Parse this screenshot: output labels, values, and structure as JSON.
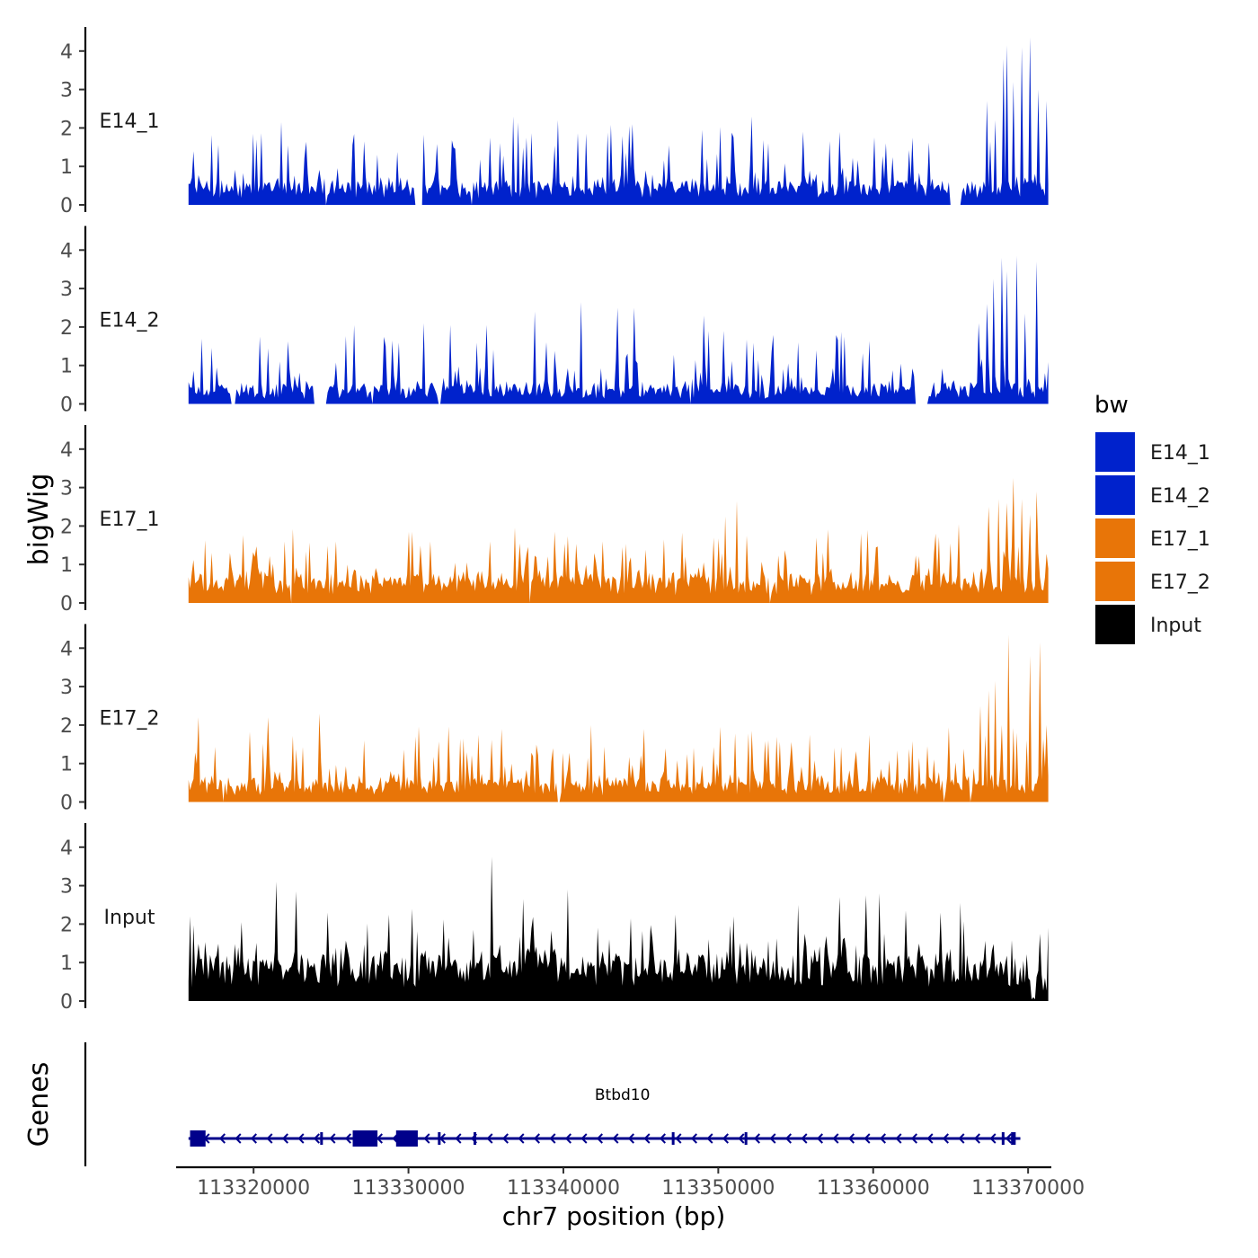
{
  "chart_data": {
    "type": "area",
    "ylabel": "bigWig",
    "genes_label": "Genes",
    "xlabel": "chr7 position (bp)",
    "xlim": [
      113315000,
      113371500
    ],
    "data_range": [
      113315800,
      113371300
    ],
    "x_ticks": [
      113320000,
      113330000,
      113340000,
      113350000,
      113360000,
      113370000
    ],
    "x_tick_labels": [
      "113320000",
      "113330000",
      "113340000",
      "113350000",
      "113360000",
      "113370000"
    ],
    "ylim": [
      0,
      4.4
    ],
    "y_ticks": [
      0,
      1,
      2,
      3,
      4
    ],
    "y_tick_labels": [
      "0",
      "1",
      "2",
      "3",
      "4"
    ],
    "legend": {
      "title": "bw",
      "position": "right",
      "entries": [
        {
          "label": "E14_1",
          "color": "#0022CC"
        },
        {
          "label": "E14_2",
          "color": "#0022CC"
        },
        {
          "label": "E17_1",
          "color": "#E87508"
        },
        {
          "label": "E17_2",
          "color": "#E87508"
        },
        {
          "label": "Input",
          "color": "#000000"
        }
      ]
    },
    "series": [
      {
        "name": "E14_1",
        "color": "#0022CC",
        "baseline": 0.45,
        "noise": 0.35,
        "peaks": 0.18,
        "peak_max": 1.6,
        "gaps": [
          [
            113317300,
            113317350
          ],
          [
            113324600,
            113324700
          ],
          [
            113330400,
            113330900
          ],
          [
            113334000,
            113334150
          ],
          [
            113351200,
            113351300
          ],
          [
            113364900,
            113365700
          ]
        ],
        "highlights": [
          [
            113320200,
            1.7
          ],
          [
            113327100,
            1.65
          ],
          [
            113335300,
            1.75
          ],
          [
            113336800,
            2.3
          ],
          [
            113339700,
            2.2
          ],
          [
            113341500,
            1.85
          ],
          [
            113344500,
            2.1
          ],
          [
            113346800,
            1.55
          ],
          [
            113348900,
            1.95
          ],
          [
            113352200,
            2.3
          ],
          [
            113357800,
            1.9
          ],
          [
            113360800,
            1.6
          ],
          [
            113362500,
            1.75
          ],
          [
            113367300,
            2.7
          ],
          [
            113367900,
            2.2
          ],
          [
            113368400,
            3.8
          ],
          [
            113368600,
            4.15
          ],
          [
            113369100,
            3.2
          ],
          [
            113369600,
            4.1
          ],
          [
            113370100,
            4.35
          ],
          [
            113370700,
            3.0
          ],
          [
            113371200,
            2.7
          ]
        ]
      },
      {
        "name": "E14_2",
        "color": "#0022CC",
        "baseline": 0.35,
        "noise": 0.35,
        "peaks": 0.18,
        "peak_max": 1.5,
        "gaps": [
          [
            113318500,
            113318800
          ],
          [
            113323900,
            113324700
          ],
          [
            113327600,
            113327700
          ],
          [
            113331900,
            113332100
          ],
          [
            113348200,
            113348300
          ],
          [
            113362700,
            113363600
          ]
        ],
        "highlights": [
          [
            113320400,
            1.75
          ],
          [
            113326500,
            2.05
          ],
          [
            113328900,
            1.65
          ],
          [
            113331000,
            2.1
          ],
          [
            113332700,
            2.05
          ],
          [
            113335100,
            2.05
          ],
          [
            113338200,
            2.4
          ],
          [
            113341100,
            2.65
          ],
          [
            113343500,
            2.5
          ],
          [
            113344600,
            2.5
          ],
          [
            113349100,
            2.3
          ],
          [
            113350300,
            1.9
          ],
          [
            113355200,
            1.6
          ],
          [
            113358200,
            1.75
          ],
          [
            113366800,
            2.1
          ],
          [
            113367300,
            2.6
          ],
          [
            113367800,
            3.25
          ],
          [
            113368300,
            3.8
          ],
          [
            113368600,
            3.45
          ],
          [
            113369300,
            3.85
          ],
          [
            113369800,
            2.35
          ],
          [
            113370600,
            3.7
          ],
          [
            113371100,
            0.8
          ]
        ]
      },
      {
        "name": "E17_1",
        "color": "#E87508",
        "baseline": 0.55,
        "noise": 0.3,
        "peaks": 0.2,
        "peak_max": 1.3,
        "gaps": [
          [
            113322400,
            113322500
          ],
          [
            113337800,
            113337900
          ],
          [
            113353300,
            113353400
          ]
        ],
        "highlights": [
          [
            113322000,
            1.6
          ],
          [
            113325300,
            1.6
          ],
          [
            113330000,
            1.85
          ],
          [
            113330200,
            1.85
          ],
          [
            113331400,
            1.6
          ],
          [
            113335300,
            1.6
          ],
          [
            113339400,
            1.85
          ],
          [
            113342500,
            1.6
          ],
          [
            113346500,
            1.65
          ],
          [
            113350500,
            2.25
          ],
          [
            113351200,
            2.65
          ],
          [
            113351800,
            1.75
          ],
          [
            113356300,
            1.7
          ],
          [
            113359600,
            1.9
          ],
          [
            113365000,
            1.55
          ],
          [
            113367400,
            2.5
          ],
          [
            113368100,
            2.7
          ],
          [
            113368600,
            2.6
          ],
          [
            113369100,
            3.25
          ],
          [
            113369600,
            2.7
          ],
          [
            113370100,
            2.3
          ],
          [
            113370500,
            2.9
          ]
        ]
      },
      {
        "name": "E17_2",
        "color": "#E87508",
        "baseline": 0.45,
        "noise": 0.35,
        "peaks": 0.2,
        "peak_max": 1.4,
        "gaps": [
          [
            113318000,
            113318100
          ],
          [
            113339600,
            113339800
          ],
          [
            113364500,
            113364600
          ],
          [
            113366200,
            113366300
          ]
        ],
        "highlights": [
          [
            113316400,
            2.2
          ],
          [
            113320900,
            2.2
          ],
          [
            113324300,
            2.3
          ],
          [
            113327100,
            1.6
          ],
          [
            113330500,
            1.7
          ],
          [
            113333500,
            1.65
          ],
          [
            113336000,
            1.9
          ],
          [
            113341800,
            2.0
          ],
          [
            113345200,
            1.9
          ],
          [
            113350100,
            1.95
          ],
          [
            113352200,
            1.85
          ],
          [
            113355900,
            1.75
          ],
          [
            113363500,
            1.45
          ],
          [
            113366900,
            2.5
          ],
          [
            113367400,
            2.9
          ],
          [
            113367900,
            3.15
          ],
          [
            113368300,
            2.0
          ],
          [
            113368700,
            4.35
          ],
          [
            113369300,
            1.8
          ],
          [
            113370100,
            3.8
          ],
          [
            113370800,
            4.15
          ],
          [
            113371200,
            2.0
          ]
        ]
      },
      {
        "name": "Input",
        "color": "#000000",
        "baseline": 0.95,
        "noise": 0.6,
        "peaks": 0.12,
        "peak_max": 1.0,
        "gaps": [],
        "highlights": [
          [
            113315900,
            2.2
          ],
          [
            113321500,
            3.1
          ],
          [
            113322700,
            2.85
          ],
          [
            113324800,
            2.3
          ],
          [
            113330200,
            2.4
          ],
          [
            113334200,
            1.85
          ],
          [
            113335400,
            3.75
          ],
          [
            113337400,
            2.65
          ],
          [
            113340300,
            2.9
          ],
          [
            113344300,
            2.15
          ],
          [
            113347200,
            2.25
          ],
          [
            113351000,
            2.2
          ],
          [
            113355200,
            2.5
          ],
          [
            113357800,
            2.7
          ],
          [
            113359500,
            2.75
          ],
          [
            113360400,
            2.8
          ],
          [
            113362100,
            2.35
          ],
          [
            113364300,
            2.3
          ],
          [
            113365600,
            2.55
          ],
          [
            113369700,
            1.05
          ],
          [
            113370300,
            0.1
          ],
          [
            113370800,
            1.75
          ],
          [
            113371100,
            0.6
          ]
        ]
      }
    ],
    "genes": [
      {
        "name": "Btbd10",
        "strand": "-",
        "start": 113315800,
        "end": 113369500,
        "exons": [
          {
            "start": 113315900,
            "end": 113316900,
            "thick": true
          },
          {
            "start": 113326400,
            "end": 113328000,
            "thick": true
          },
          {
            "start": 113329200,
            "end": 113330600,
            "thick": true
          },
          {
            "start": 113324300,
            "end": 113324400,
            "thick": false
          },
          {
            "start": 113331900,
            "end": 113332000,
            "thick": false
          },
          {
            "start": 113334200,
            "end": 113334300,
            "thick": false
          },
          {
            "start": 113347000,
            "end": 113347100,
            "thick": false
          },
          {
            "start": 113351700,
            "end": 113351800,
            "thick": false
          },
          {
            "start": 113368300,
            "end": 113368400,
            "thick": false
          },
          {
            "start": 113368900,
            "end": 113369200,
            "thick": false
          }
        ]
      }
    ]
  }
}
